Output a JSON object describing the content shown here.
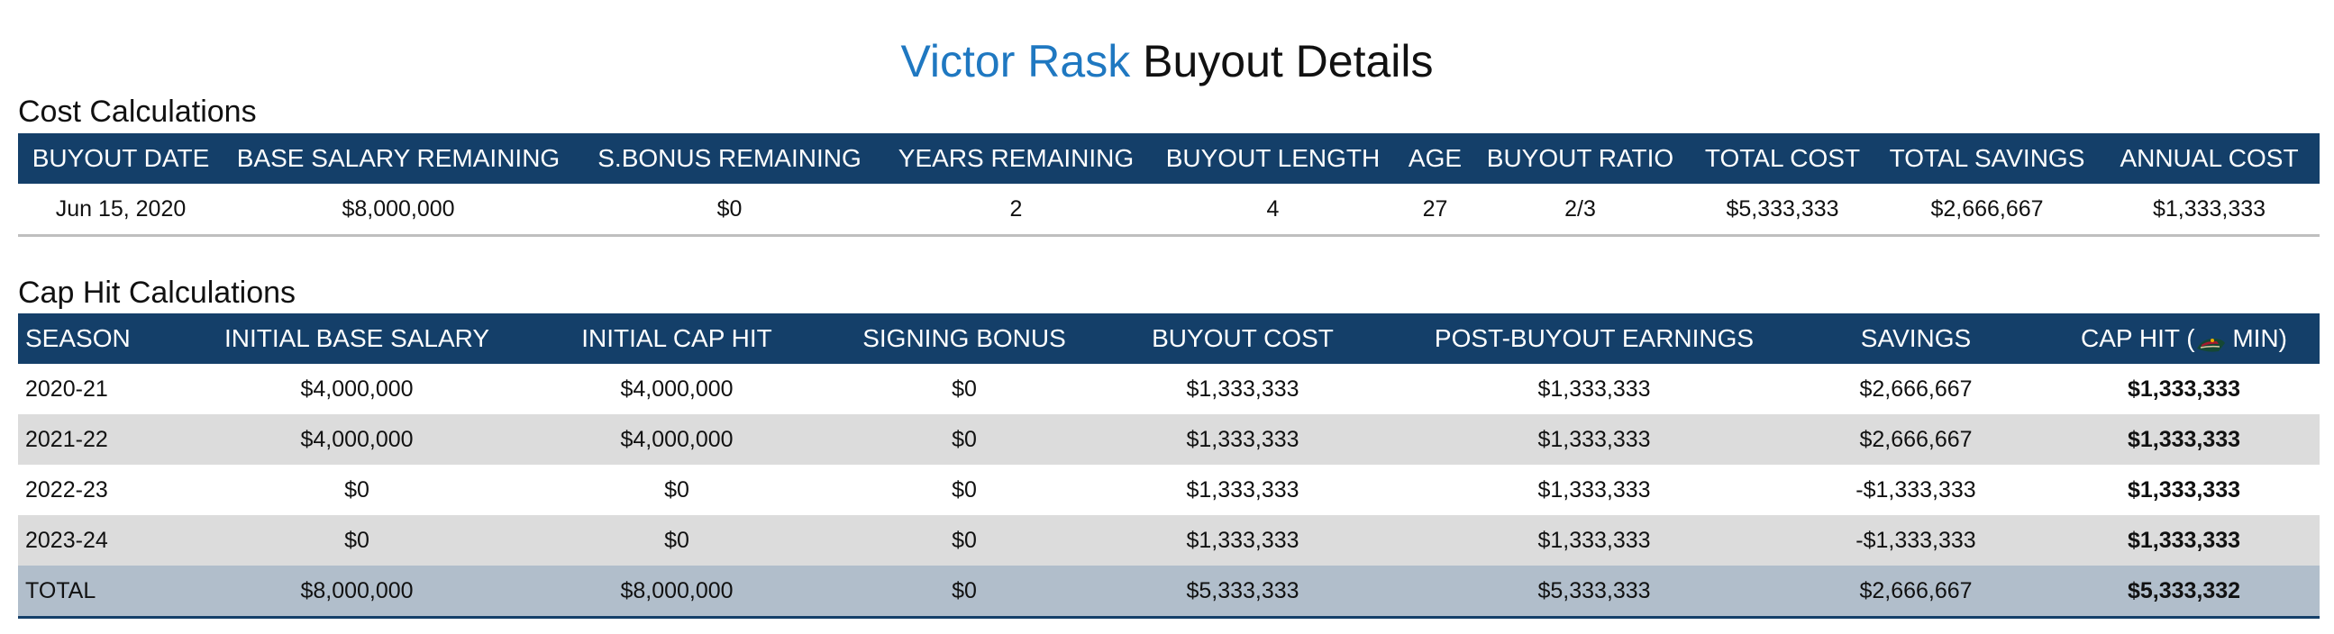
{
  "title": {
    "player": "Victor Rask",
    "rest": "Buyout Details",
    "player_color": "#1f78c1"
  },
  "cost": {
    "heading": "Cost Calculations",
    "headers": [
      "BUYOUT DATE",
      "BASE SALARY REMAINING",
      "S.BONUS REMAINING",
      "YEARS REMAINING",
      "BUYOUT LENGTH",
      "AGE",
      "BUYOUT RATIO",
      "TOTAL COST",
      "TOTAL SAVINGS",
      "ANNUAL COST"
    ],
    "row": [
      "Jun 15, 2020",
      "$8,000,000",
      "$0",
      "2",
      "4",
      "27",
      "2/3",
      "$5,333,333",
      "$2,666,667",
      "$1,333,333"
    ]
  },
  "cap": {
    "heading": "Cap Hit Calculations",
    "headers": [
      "SEASON",
      "INITIAL BASE SALARY",
      "INITIAL CAP HIT",
      "SIGNING BONUS",
      "BUYOUT COST",
      "POST-BUYOUT EARNINGS",
      "SAVINGS"
    ],
    "caphit_header": {
      "prefix": "CAP HIT (",
      "suffix": " MIN)",
      "icon": "minnesota-wild-logo"
    },
    "rows": [
      [
        "2020-21",
        "$4,000,000",
        "$4,000,000",
        "$0",
        "$1,333,333",
        "$1,333,333",
        "$2,666,667",
        "$1,333,333"
      ],
      [
        "2021-22",
        "$4,000,000",
        "$4,000,000",
        "$0",
        "$1,333,333",
        "$1,333,333",
        "$2,666,667",
        "$1,333,333"
      ],
      [
        "2022-23",
        "$0",
        "$0",
        "$0",
        "$1,333,333",
        "$1,333,333",
        "-$1,333,333",
        "$1,333,333"
      ],
      [
        "2023-24",
        "$0",
        "$0",
        "$0",
        "$1,333,333",
        "$1,333,333",
        "-$1,333,333",
        "$1,333,333"
      ]
    ],
    "total": [
      "TOTAL",
      "$8,000,000",
      "$8,000,000",
      "$0",
      "$5,333,333",
      "$5,333,333",
      "$2,666,667",
      "$5,333,332"
    ]
  },
  "colors": {
    "header_bg": "#143f69",
    "stripe": "#dcdcdc",
    "total_bg": "#b1becb"
  }
}
